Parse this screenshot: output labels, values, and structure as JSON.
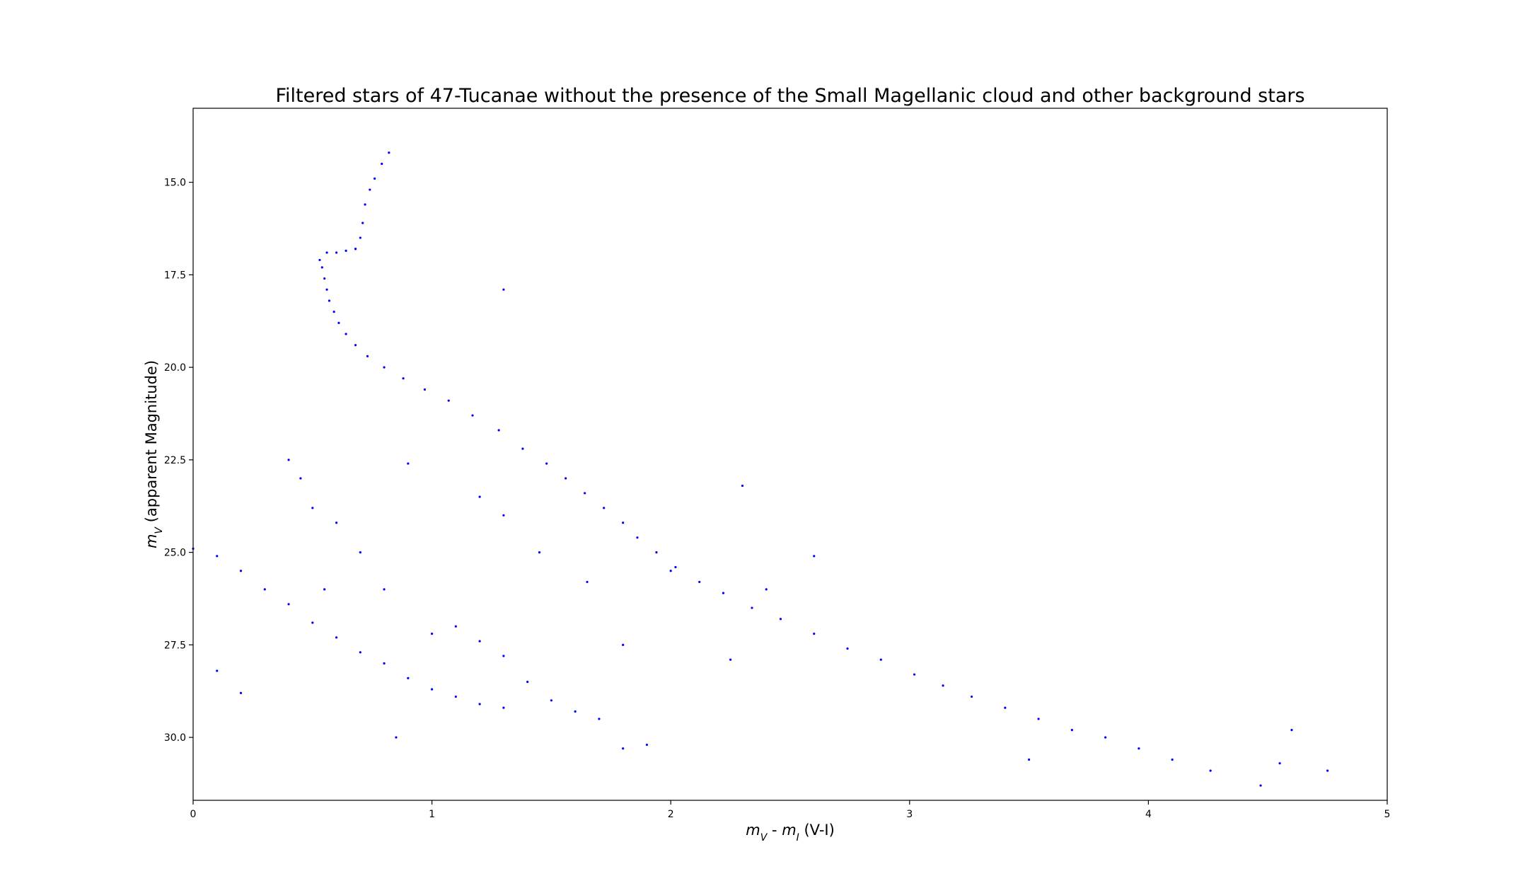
{
  "chart_data": {
    "type": "scatter",
    "title": "Filtered stars of 47-Tucanae without the presence of the Small Magellanic cloud and other background stars",
    "xlabel": "m_V - m_I (V-I)",
    "ylabel": "m_V (apparent Magnitude)",
    "xlim": [
      0,
      5
    ],
    "ylim": [
      31.7,
      13.0
    ],
    "y_inverted": true,
    "x_ticks": [
      {
        "value": 0,
        "label": "0"
      },
      {
        "value": 1,
        "label": "1"
      },
      {
        "value": 2,
        "label": "2"
      },
      {
        "value": 3,
        "label": "3"
      },
      {
        "value": 4,
        "label": "4"
      },
      {
        "value": 5,
        "label": "5"
      }
    ],
    "y_ticks": [
      {
        "value": 15.0,
        "label": "15.0"
      },
      {
        "value": 17.5,
        "label": "17.5"
      },
      {
        "value": 20.0,
        "label": "20.0"
      },
      {
        "value": 22.5,
        "label": "22.5"
      },
      {
        "value": 25.0,
        "label": "25.0"
      },
      {
        "value": 27.5,
        "label": "27.5"
      },
      {
        "value": 30.0,
        "label": "30.0"
      }
    ],
    "grid": false,
    "legend": "none",
    "marker_color": "#0000ff",
    "series": [
      {
        "component": "main-sequence",
        "points": [
          [
            0.54,
            17.3
          ],
          [
            0.55,
            17.6
          ],
          [
            0.56,
            17.9
          ],
          [
            0.57,
            18.2
          ],
          [
            0.59,
            18.5
          ],
          [
            0.61,
            18.8
          ],
          [
            0.64,
            19.1
          ],
          [
            0.68,
            19.4
          ],
          [
            0.73,
            19.7
          ],
          [
            0.8,
            20.0
          ],
          [
            0.88,
            20.3
          ],
          [
            0.97,
            20.6
          ],
          [
            1.07,
            20.9
          ],
          [
            1.17,
            21.3
          ],
          [
            1.28,
            21.7
          ],
          [
            1.38,
            22.2
          ],
          [
            1.48,
            22.6
          ],
          [
            1.56,
            23.0
          ],
          [
            1.64,
            23.4
          ],
          [
            1.72,
            23.8
          ],
          [
            1.8,
            24.2
          ],
          [
            1.86,
            24.6
          ],
          [
            1.94,
            25.0
          ],
          [
            2.02,
            25.4
          ],
          [
            2.12,
            25.8
          ],
          [
            2.22,
            26.1
          ],
          [
            2.34,
            26.5
          ],
          [
            2.46,
            26.8
          ],
          [
            2.6,
            27.2
          ],
          [
            2.74,
            27.6
          ],
          [
            2.88,
            27.9
          ],
          [
            3.02,
            28.3
          ],
          [
            3.14,
            28.6
          ],
          [
            3.26,
            28.9
          ],
          [
            3.4,
            29.2
          ],
          [
            3.54,
            29.5
          ],
          [
            3.68,
            29.8
          ],
          [
            3.82,
            30.0
          ],
          [
            3.96,
            30.3
          ],
          [
            4.1,
            30.6
          ],
          [
            4.26,
            30.9
          ],
          [
            4.47,
            31.3
          ]
        ]
      },
      {
        "component": "subgiant-branch",
        "points": [
          [
            0.53,
            17.1
          ],
          [
            0.56,
            16.9
          ],
          [
            0.6,
            16.9
          ],
          [
            0.64,
            16.85
          ],
          [
            0.68,
            16.8
          ]
        ]
      },
      {
        "component": "red-giant-branch",
        "points": [
          [
            0.68,
            16.8
          ],
          [
            0.7,
            16.5
          ],
          [
            0.71,
            16.1
          ],
          [
            0.72,
            15.6
          ],
          [
            0.74,
            15.2
          ],
          [
            0.76,
            14.9
          ],
          [
            0.79,
            14.5
          ],
          [
            0.82,
            14.2
          ]
        ]
      },
      {
        "component": "white-dwarf-sequence",
        "points": [
          [
            0.0,
            24.9
          ],
          [
            0.1,
            25.1
          ],
          [
            0.2,
            25.5
          ],
          [
            0.3,
            26.0
          ],
          [
            0.4,
            26.4
          ],
          [
            0.5,
            26.9
          ],
          [
            0.6,
            27.3
          ],
          [
            0.7,
            27.7
          ],
          [
            0.8,
            28.0
          ],
          [
            0.9,
            28.4
          ],
          [
            1.0,
            28.7
          ],
          [
            1.1,
            28.9
          ],
          [
            1.2,
            29.1
          ],
          [
            1.3,
            29.2
          ]
        ]
      },
      {
        "component": "scattered-field",
        "points": [
          [
            1.0,
            27.2
          ],
          [
            1.1,
            27.0
          ],
          [
            1.2,
            27.4
          ],
          [
            1.3,
            27.8
          ],
          [
            1.4,
            28.5
          ],
          [
            1.5,
            29.0
          ],
          [
            1.6,
            29.3
          ],
          [
            1.7,
            29.5
          ],
          [
            1.8,
            30.3
          ],
          [
            0.8,
            26.0
          ],
          [
            0.7,
            25.0
          ],
          [
            0.6,
            24.2
          ],
          [
            0.45,
            23.0
          ],
          [
            0.5,
            23.8
          ],
          [
            0.4,
            22.5
          ],
          [
            1.2,
            23.5
          ],
          [
            1.3,
            24.0
          ],
          [
            1.45,
            25.0
          ],
          [
            1.65,
            25.8
          ],
          [
            1.8,
            27.5
          ],
          [
            2.0,
            25.5
          ],
          [
            2.3,
            23.2
          ],
          [
            2.6,
            25.1
          ],
          [
            1.3,
            17.9
          ],
          [
            2.4,
            26.0
          ],
          [
            0.1,
            28.2
          ],
          [
            0.2,
            28.8
          ],
          [
            0.85,
            30.0
          ],
          [
            1.9,
            30.2
          ],
          [
            3.5,
            30.6
          ],
          [
            4.6,
            29.8
          ],
          [
            4.75,
            30.9
          ],
          [
            4.55,
            30.7
          ],
          [
            2.25,
            27.9
          ],
          [
            0.9,
            22.6
          ],
          [
            0.55,
            26.0
          ]
        ]
      }
    ]
  }
}
